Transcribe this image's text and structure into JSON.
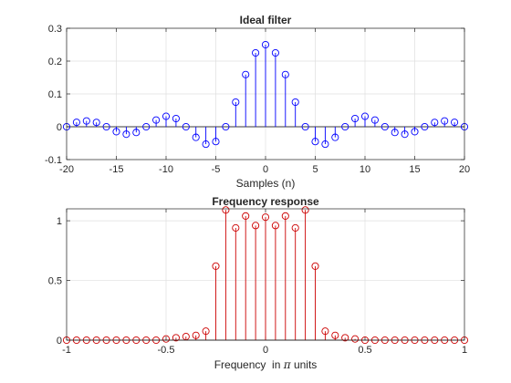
{
  "chart_data": [
    {
      "type": "stem",
      "title": "Ideal filter",
      "xlabel": "Samples (n)",
      "ylabel": "",
      "xlim": [
        -20,
        20
      ],
      "ylim": [
        -0.1,
        0.3
      ],
      "xticks": [
        -20,
        -15,
        -10,
        -5,
        0,
        5,
        10,
        15,
        20
      ],
      "xtick_labels": [
        "-20",
        "-15",
        "-10",
        "-5",
        "0",
        "5",
        "10",
        "15",
        "20"
      ],
      "yticks": [
        -0.1,
        0,
        0.1,
        0.2,
        0.3
      ],
      "ytick_labels": [
        "-0.1",
        "0",
        "0.1",
        "0.2",
        "0.3"
      ],
      "grid": true,
      "color": "#0000ff",
      "x": [
        -20,
        -19,
        -18,
        -17,
        -16,
        -15,
        -14,
        -13,
        -12,
        -11,
        -10,
        -9,
        -8,
        -7,
        -6,
        -5,
        -4,
        -3,
        -2,
        -1,
        0,
        1,
        2,
        3,
        4,
        5,
        6,
        7,
        8,
        9,
        10,
        11,
        12,
        13,
        14,
        15,
        16,
        17,
        18,
        19,
        20
      ],
      "y": [
        0,
        0.0135,
        0.0177,
        0.0132,
        0,
        -0.015,
        -0.0227,
        -0.0173,
        0,
        0.0205,
        0.0318,
        0.025,
        0,
        -0.0322,
        -0.053,
        -0.045,
        0,
        0.075,
        0.159,
        0.225,
        0.25,
        0.225,
        0.159,
        0.075,
        0,
        -0.045,
        -0.053,
        -0.0322,
        0,
        0.025,
        0.0318,
        0.0205,
        0,
        -0.0173,
        -0.0227,
        -0.015,
        0,
        0.0132,
        0.0177,
        0.0135,
        0
      ]
    },
    {
      "type": "stem",
      "title": "Frequency response",
      "xlabel_prefix": "Frequency  in ",
      "xlabel_symbol": "π",
      "xlabel_suffix": " units",
      "ylabel": "",
      "xlim": [
        -1,
        1
      ],
      "ylim": [
        0,
        1.1
      ],
      "xticks": [
        -1,
        -0.5,
        0,
        0.5,
        1
      ],
      "xtick_labels": [
        "-1",
        "-0.5",
        "0",
        "0.5",
        "1"
      ],
      "yticks": [
        0,
        0.5,
        1
      ],
      "ytick_labels": [
        "0",
        "0.5",
        "1"
      ],
      "grid": true,
      "color": "#cc0000",
      "x": [
        -1,
        -0.95,
        -0.9,
        -0.85,
        -0.8,
        -0.75,
        -0.7,
        -0.65,
        -0.6,
        -0.55,
        -0.5,
        -0.45,
        -0.4,
        -0.35,
        -0.3,
        -0.25,
        -0.2,
        -0.15,
        -0.1,
        -0.05,
        0,
        0.05,
        0.1,
        0.15,
        0.2,
        0.25,
        0.3,
        0.35,
        0.4,
        0.45,
        0.5,
        0.55,
        0.6,
        0.65,
        0.7,
        0.75,
        0.8,
        0.85,
        0.9,
        0.95,
        1
      ],
      "y": [
        0,
        0,
        0,
        0,
        0,
        0,
        0,
        0,
        0,
        0,
        0.01,
        0.02,
        0.03,
        0.04,
        0.075,
        0.62,
        1.09,
        0.94,
        1.04,
        0.96,
        1.03,
        0.96,
        1.04,
        0.94,
        1.09,
        0.62,
        0.075,
        0.04,
        0.02,
        0.01,
        0,
        0,
        0,
        0,
        0,
        0,
        0,
        0,
        0,
        0,
        0
      ]
    }
  ]
}
